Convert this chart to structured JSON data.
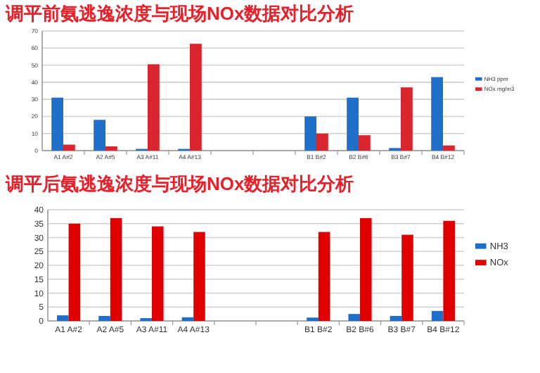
{
  "chart_data": [
    {
      "type": "bar",
      "title": "调平前氨逃逸浓度与现场NOx数据对比分析",
      "categories": [
        "A1 A#2",
        "A2 A#5",
        "A3 A#11",
        "A4 A#13",
        null,
        null,
        "B1 B#2",
        "B2 B#6",
        "B3 B#7",
        "B4 B#12"
      ],
      "series": [
        {
          "name": "NH3 ppm",
          "color": "#1f6fc8",
          "values": [
            31,
            18,
            1,
            1,
            null,
            null,
            20,
            31,
            1.5,
            43
          ]
        },
        {
          "name": "NOx mg/m3",
          "color": "#d9262e",
          "values": [
            3.5,
            2.5,
            50.5,
            62.5,
            null,
            null,
            10,
            9,
            37,
            3
          ]
        }
      ],
      "ylim": [
        0,
        70
      ],
      "yticks": [
        0,
        10,
        20,
        30,
        40,
        50,
        60,
        70
      ],
      "grid": "y",
      "legend": "right"
    },
    {
      "type": "bar",
      "title": "调平后氨逃逸浓度与现场NOx数据对比分析",
      "categories": [
        "A1 A#2",
        "A2 A#5",
        "A3 A#11",
        "A4 A#13",
        null,
        null,
        "B1 B#2",
        "B2 B#6",
        "B3 B#7",
        "B4 B#12"
      ],
      "series": [
        {
          "name": "NH3",
          "color": "#1f6fc8",
          "values": [
            2,
            1.8,
            1,
            1.3,
            null,
            null,
            1.2,
            2.5,
            1.8,
            3.6
          ]
        },
        {
          "name": "NOx",
          "color": "#e00000",
          "values": [
            35,
            37,
            34,
            32,
            null,
            null,
            32,
            37,
            31,
            36
          ]
        }
      ],
      "ylim": [
        0,
        40
      ],
      "yticks": [
        0,
        5,
        10,
        15,
        20,
        25,
        30,
        35,
        40
      ],
      "grid": "y",
      "legend": "right"
    }
  ]
}
